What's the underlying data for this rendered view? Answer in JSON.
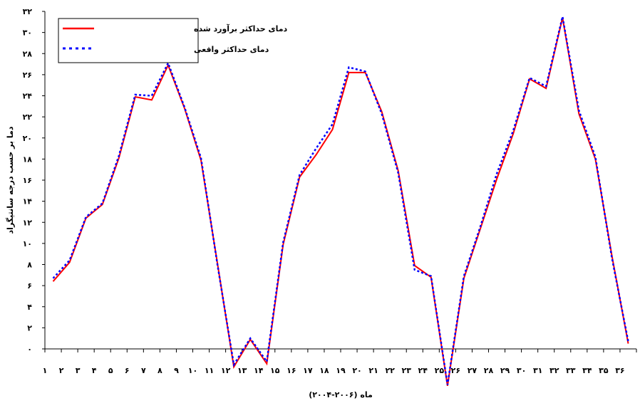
{
  "chart_data": {
    "type": "line",
    "xlabel": "ماه (۲۰۰۶-۲۰۰۴)",
    "ylabel": "دما بر حسب درجه سانتیگراد",
    "ylim": [
      0,
      32
    ],
    "yticks": [
      0,
      2,
      4,
      6,
      8,
      10,
      12,
      14,
      16,
      18,
      20,
      22,
      24,
      26,
      28,
      30,
      32
    ],
    "ytick_labels": [
      "۰",
      "۲",
      "۴",
      "۶",
      "۸",
      "۱۰",
      "۱۲",
      "۱۴",
      "۱۶",
      "۱۸",
      "۲۰",
      "۲۲",
      "۲۴",
      "۲۶",
      "۲۸",
      "۳۰",
      "۳۲"
    ],
    "x": [
      1,
      2,
      3,
      4,
      5,
      6,
      7,
      8,
      9,
      10,
      11,
      12,
      13,
      14,
      15,
      16,
      17,
      18,
      19,
      20,
      21,
      22,
      23,
      24,
      25,
      26,
      27,
      28,
      29,
      30,
      31,
      32,
      33,
      34,
      35,
      36
    ],
    "xtick_labels": [
      "۱",
      "۲",
      "۳",
      "۴",
      "۵",
      "۶",
      "۷",
      "۸",
      "۹",
      "۱۰",
      "۱۱",
      "۱۲",
      "۱۳",
      "۱۴",
      "۱۵",
      "۱۶",
      "۱۷",
      "۱۸",
      "۱۹",
      "۲۰",
      "۲۱",
      "۲۲",
      "۲۳",
      "۲۴",
      "۲۵",
      "۲۶",
      "۲۷",
      "۲۸",
      "۲۹",
      "۳۰",
      "۳۱",
      "۳۲",
      "۳۳",
      "۳۴",
      "۳۵",
      "۳۶"
    ],
    "legend_position": "top-left",
    "grid": false,
    "series": [
      {
        "name": "دمای حداکثر برآورد شده",
        "color": "#ff0000",
        "style": "solid",
        "values": [
          6.4,
          8.2,
          12.4,
          13.7,
          18.1,
          23.9,
          23.6,
          26.9,
          22.8,
          17.9,
          8.1,
          -1.7,
          0.9,
          -1.4,
          9.9,
          16.3,
          18.4,
          20.8,
          26.2,
          26.2,
          22.5,
          16.9,
          7.9,
          6.8,
          -3.5,
          6.7,
          11.4,
          16.1,
          20.4,
          25.6,
          24.7,
          31.4,
          22.3,
          18.0,
          8.9,
          0.5
        ]
      },
      {
        "name": "دمای حداکثر واقعی",
        "color": "#0000ff",
        "style": "dotted",
        "values": [
          6.7,
          8.4,
          12.5,
          13.8,
          18.3,
          24.1,
          24.0,
          27.1,
          22.9,
          18.1,
          8.0,
          -1.5,
          1.0,
          -1.2,
          10.1,
          16.5,
          19.0,
          21.3,
          26.7,
          26.3,
          22.3,
          16.7,
          7.5,
          6.9,
          -3.4,
          6.9,
          11.6,
          16.6,
          20.7,
          25.7,
          24.9,
          31.5,
          22.6,
          18.2,
          8.7,
          0.7
        ]
      }
    ]
  }
}
